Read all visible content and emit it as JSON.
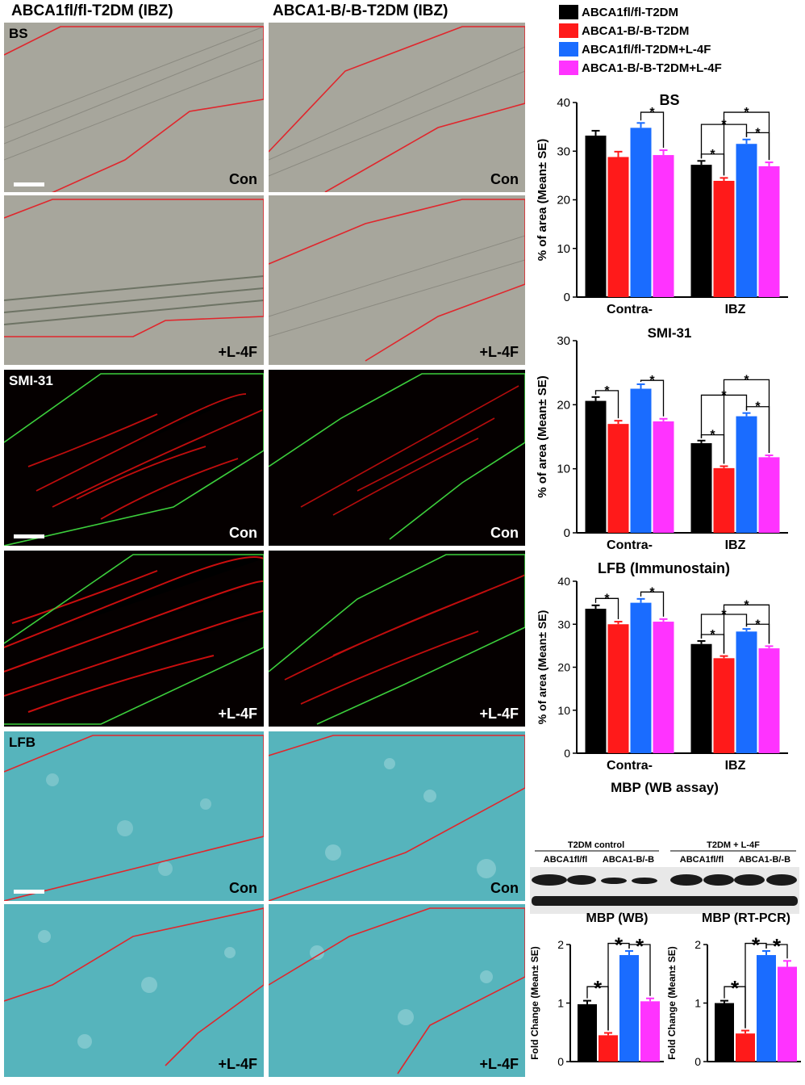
{
  "column_titles": [
    "ABCA1fl/fl-T2DM (IBZ)",
    "ABCA1-B/-B-T2DM (IBZ)"
  ],
  "stain_labels": {
    "bs": "BS",
    "smi": "SMI-31",
    "lfb": "LFB"
  },
  "condition_labels": {
    "con": "Con",
    "l4f": "+L-4F"
  },
  "legend": [
    {
      "label": "ABCA1fl/fl-T2DM",
      "color": "#000000"
    },
    {
      "label": "ABCA1-B/-B-T2DM",
      "color": "#ff1a1a"
    },
    {
      "label": "ABCA1fl/fl-T2DM+L-4F",
      "color": "#1a6cff"
    },
    {
      "label": "ABCA1-B/-B-T2DM+L-4F",
      "color": "#ff33ff"
    }
  ],
  "colors": {
    "bs_tissue": "#a7a69c",
    "smi_bg": "#050000",
    "lfb_tissue": "#56b4bc",
    "region_red": "#e0262c",
    "region_green": "#3ccf3c"
  },
  "chart_data": [
    {
      "type": "bar",
      "title": "BS",
      "ylabel": "% of area (Mean± SE)",
      "categories": [
        "Contra-",
        "IBZ"
      ],
      "ylim": [
        0,
        40
      ],
      "yticks": [
        0,
        10,
        20,
        30,
        40
      ],
      "series": [
        {
          "name": "ABCA1fl/fl-T2DM",
          "values": [
            33.2,
            27.2
          ],
          "err": [
            1.0,
            0.8
          ]
        },
        {
          "name": "ABCA1-B/-B-T2DM",
          "values": [
            28.8,
            23.9
          ],
          "err": [
            1.1,
            0.6
          ]
        },
        {
          "name": "ABCA1fl/fl-T2DM+L-4F",
          "values": [
            34.8,
            31.5
          ],
          "err": [
            1.0,
            0.9
          ]
        },
        {
          "name": "ABCA1-B/-B-T2DM+L-4F",
          "values": [
            29.2,
            26.9
          ],
          "err": [
            1.0,
            0.8
          ]
        }
      ],
      "significance": "*"
    },
    {
      "type": "bar",
      "title": "SMI-31",
      "ylabel": "% of area (Mean± SE)",
      "categories": [
        "Contra-",
        "IBZ"
      ],
      "ylim": [
        0,
        30
      ],
      "yticks": [
        0,
        10,
        20,
        30
      ],
      "series": [
        {
          "name": "ABCA1fl/fl-T2DM",
          "values": [
            20.6,
            14.0
          ],
          "err": [
            0.6,
            0.4
          ]
        },
        {
          "name": "ABCA1-B/-B-T2DM",
          "values": [
            17.0,
            10.1
          ],
          "err": [
            0.5,
            0.3
          ]
        },
        {
          "name": "ABCA1fl/fl-T2DM+L-4F",
          "values": [
            22.5,
            18.2
          ],
          "err": [
            0.7,
            0.5
          ]
        },
        {
          "name": "ABCA1-B/-B-T2DM+L-4F",
          "values": [
            17.4,
            11.8
          ],
          "err": [
            0.4,
            0.3
          ]
        }
      ],
      "significance": "*"
    },
    {
      "type": "bar",
      "title": "LFB",
      "title_suffix": "(Immunostain)",
      "ylabel": "% of area (Mean± SE)",
      "categories": [
        "Contra-",
        "IBZ"
      ],
      "ylim": [
        0,
        40
      ],
      "yticks": [
        0,
        10,
        20,
        30,
        40
      ],
      "series": [
        {
          "name": "ABCA1fl/fl-T2DM",
          "values": [
            33.6,
            25.4
          ],
          "err": [
            0.8,
            0.7
          ]
        },
        {
          "name": "ABCA1-B/-B-T2DM",
          "values": [
            30.0,
            22.1
          ],
          "err": [
            0.6,
            0.5
          ]
        },
        {
          "name": "ABCA1fl/fl-T2DM+L-4F",
          "values": [
            35.0,
            28.3
          ],
          "err": [
            0.9,
            0.6
          ]
        },
        {
          "name": "ABCA1-B/-B-T2DM+L-4F",
          "values": [
            30.6,
            24.4
          ],
          "err": [
            0.6,
            0.5
          ]
        }
      ],
      "significance": "*"
    },
    {
      "type": "bar",
      "title": "MBP (WB)",
      "ylabel": "Fold Change (Mean± SE)",
      "categories": [
        ""
      ],
      "ylim": [
        0,
        2
      ],
      "yticks": [
        0,
        1,
        2
      ],
      "series": [
        {
          "name": "ABCA1fl/fl-T2DM",
          "values": [
            0.98
          ],
          "err": [
            0.06
          ]
        },
        {
          "name": "ABCA1-B/-B-T2DM",
          "values": [
            0.45
          ],
          "err": [
            0.04
          ]
        },
        {
          "name": "ABCA1fl/fl-T2DM+L-4F",
          "values": [
            1.82
          ],
          "err": [
            0.07
          ]
        },
        {
          "name": "ABCA1-B/-B-T2DM+L-4F",
          "values": [
            1.03
          ],
          "err": [
            0.05
          ]
        }
      ],
      "significance": "*"
    },
    {
      "type": "bar",
      "title": "MBP (RT-PCR)",
      "ylabel": "Fold Change (Mean± SE)",
      "categories": [
        ""
      ],
      "ylim": [
        0,
        2
      ],
      "yticks": [
        0,
        1,
        2
      ],
      "series": [
        {
          "name": "ABCA1fl/fl-T2DM",
          "values": [
            1.0
          ],
          "err": [
            0.04
          ]
        },
        {
          "name": "ABCA1-B/-B-T2DM",
          "values": [
            0.48
          ],
          "err": [
            0.05
          ]
        },
        {
          "name": "ABCA1fl/fl-T2DM+L-4F",
          "values": [
            1.82
          ],
          "err": [
            0.07
          ]
        },
        {
          "name": "ABCA1-B/-B-T2DM+L-4F",
          "values": [
            1.62
          ],
          "err": [
            0.1
          ]
        }
      ],
      "significance": "*"
    }
  ],
  "western_blot": {
    "title": "MBP (WB assay)",
    "groups": [
      "T2DM control",
      "T2DM + L-4F"
    ],
    "lanes": [
      "ABCA1fl/fl",
      "ABCA1-B/-B",
      "ABCA1fl/fl",
      "ABCA1-B/-B"
    ]
  }
}
